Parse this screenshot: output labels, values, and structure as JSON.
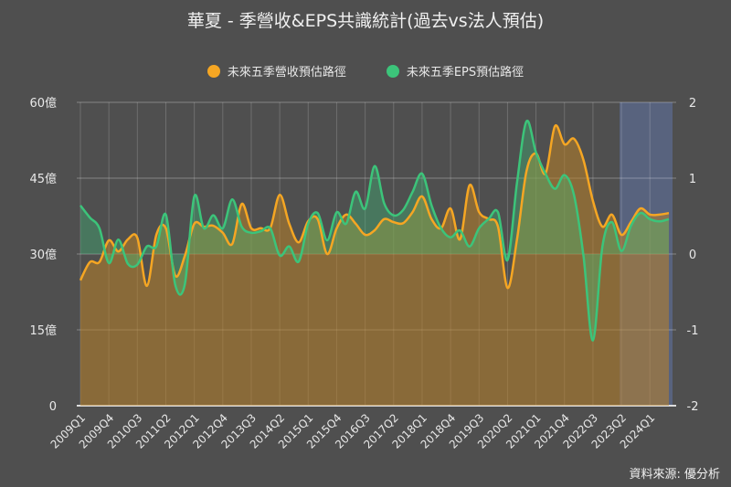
{
  "chart_data": {
    "type": "area",
    "title": "華夏 - 季營收&EPS共識統計(過去vs法人預估)",
    "source": "資料來源: 優分析",
    "categories": [
      "2009Q1",
      "2009Q2",
      "2009Q3",
      "2009Q4",
      "2010Q1",
      "2010Q2",
      "2010Q3",
      "2010Q4",
      "2011Q1",
      "2011Q2",
      "2011Q3",
      "2011Q4",
      "2012Q1",
      "2012Q2",
      "2012Q3",
      "2012Q4",
      "2013Q1",
      "2013Q2",
      "2013Q3",
      "2013Q4",
      "2014Q1",
      "2014Q2",
      "2014Q3",
      "2014Q4",
      "2015Q1",
      "2015Q2",
      "2015Q3",
      "2015Q4",
      "2016Q1",
      "2016Q2",
      "2016Q3",
      "2016Q4",
      "2017Q1",
      "2017Q2",
      "2017Q3",
      "2017Q4",
      "2018Q1",
      "2018Q2",
      "2018Q3",
      "2018Q4",
      "2019Q1",
      "2019Q2",
      "2019Q3",
      "2019Q4",
      "2020Q1",
      "2020Q2",
      "2020Q3",
      "2020Q4",
      "2021Q1",
      "2021Q2",
      "2021Q3",
      "2021Q4",
      "2022Q1",
      "2022Q2",
      "2022Q3",
      "2022Q4",
      "2023Q1",
      "2023Q2",
      "2023Q3",
      "2023Q4",
      "2024Q1",
      "2024Q2",
      "2024Q3"
    ],
    "x_tick_labels": [
      "2009Q1",
      "2009Q4",
      "2010Q3",
      "2011Q2",
      "2012Q1",
      "2012Q4",
      "2013Q3",
      "2014Q2",
      "2015Q1",
      "2015Q4",
      "2016Q3",
      "2017Q2",
      "2018Q1",
      "2018Q4",
      "2019Q3",
      "2020Q2",
      "2021Q1",
      "2021Q4",
      "2022Q3",
      "2023Q2",
      "2024Q1"
    ],
    "y_left": {
      "ticks": [
        "0",
        "15億",
        "30億",
        "45億",
        "60億"
      ],
      "range": [
        0,
        60
      ]
    },
    "y_right": {
      "ticks": [
        "-2",
        "-1",
        "0",
        "1",
        "2"
      ],
      "range": [
        -2,
        2
      ]
    },
    "forecast_highlight_from": "2023Q2",
    "grid": true,
    "legend_position": "top",
    "series": [
      {
        "name": "未來五季營收預估路徑",
        "axis": "left",
        "color": "#f5a623",
        "values": [
          24.8,
          28.4,
          28.4,
          32.7,
          30.5,
          32.9,
          33.2,
          23.7,
          33.8,
          35.1,
          25.7,
          29.6,
          36.0,
          35.4,
          35.6,
          34.2,
          32.0,
          39.9,
          35.1,
          35.1,
          35.1,
          41.7,
          36.0,
          32.3,
          36.5,
          36.9,
          30.0,
          35.1,
          37.8,
          36.0,
          33.8,
          34.7,
          36.9,
          36.3,
          36.1,
          38.3,
          41.4,
          36.9,
          35.1,
          39.0,
          32.9,
          43.6,
          38.3,
          36.9,
          35.4,
          23.3,
          32.9,
          46.4,
          49.9,
          45.9,
          55.3,
          51.7,
          52.8,
          48.6,
          40.5,
          35.4,
          37.8,
          33.8,
          36.3,
          39.0,
          37.8,
          37.8,
          38.1
        ]
      },
      {
        "name": "未來五季EPS預估路徑",
        "axis": "right",
        "color": "#3cc47a",
        "values": [
          0.64,
          0.48,
          0.34,
          -0.12,
          0.19,
          -0.13,
          -0.14,
          0.1,
          0.1,
          0.52,
          -0.41,
          -0.4,
          0.76,
          0.34,
          0.51,
          0.34,
          0.72,
          0.36,
          0.28,
          0.3,
          0.34,
          -0.02,
          0.1,
          -0.1,
          0.4,
          0.54,
          0.18,
          0.55,
          0.4,
          0.82,
          0.6,
          1.16,
          0.67,
          0.51,
          0.58,
          0.82,
          1.06,
          0.64,
          0.34,
          0.22,
          0.31,
          0.1,
          0.34,
          0.46,
          0.55,
          -0.08,
          0.94,
          1.75,
          1.34,
          1.06,
          0.86,
          1.04,
          0.78,
          -0.02,
          -1.14,
          0.1,
          0.42,
          0.04,
          0.37,
          0.54,
          0.46,
          0.43,
          0.46
        ]
      }
    ]
  }
}
